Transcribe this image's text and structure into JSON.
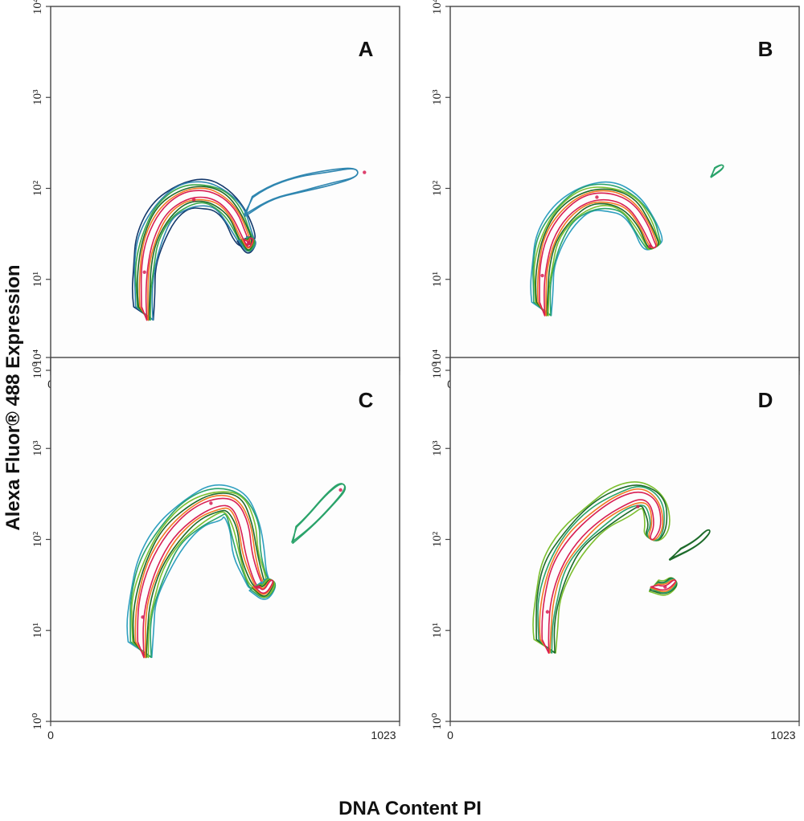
{
  "figure": {
    "ylabel": "Alexa Fluor® 488 Expression",
    "xlabel": "DNA Content PI"
  },
  "chart_data": [
    {
      "type": "contour",
      "panel": "A",
      "xlim": [
        0,
        1023
      ],
      "ylim": [
        1,
        10000
      ],
      "yscale": "log",
      "x_tick_labels": [
        "0",
        "1023"
      ],
      "y_tick_labels": [
        "10⁰",
        "10¹",
        "10²",
        "10³",
        "10⁴"
      ],
      "level_colors": [
        "#13386b",
        "#2f86b0",
        "#3aa84a",
        "#1d6b2a",
        "#f27a22",
        "#d81f54"
      ],
      "populations": [
        {
          "name": "G1 peak",
          "x": 275,
          "y": 12
        },
        {
          "name": "S phase arc top",
          "x": 420,
          "y": 75
        },
        {
          "name": "G2/M peak",
          "x": 580,
          "y": 25
        },
        {
          "name": "high-DNA tail",
          "x": 920,
          "y": 150
        }
      ]
    },
    {
      "type": "contour",
      "panel": "B",
      "xlim": [
        0,
        1023
      ],
      "ylim": [
        1,
        10000
      ],
      "yscale": "log",
      "x_tick_labels": [
        "0",
        "1023"
      ],
      "y_tick_labels": [
        "10⁰",
        "10¹",
        "10²",
        "10³",
        "10⁴"
      ],
      "level_colors": [
        "#2f9fc0",
        "#2aa36a",
        "#7cbf2e",
        "#1d6b2a",
        "#f27a22",
        "#d81f54"
      ],
      "populations": [
        {
          "name": "G1 peak",
          "x": 270,
          "y": 11
        },
        {
          "name": "S phase arc top",
          "x": 430,
          "y": 80
        },
        {
          "name": "G2/M peak",
          "x": 585,
          "y": 23
        }
      ]
    },
    {
      "type": "contour",
      "panel": "C",
      "xlim": [
        0,
        1023
      ],
      "ylim": [
        1,
        10000
      ],
      "yscale": "log",
      "x_tick_labels": [
        "0",
        "1023"
      ],
      "y_tick_labels": [
        "10⁰",
        "10¹",
        "10²",
        "10³",
        "10⁴"
      ],
      "level_colors": [
        "#2f9fc0",
        "#2aa36a",
        "#7cbf2e",
        "#1d6b2a",
        "#f27a22",
        "#d81f54"
      ],
      "populations": [
        {
          "name": "G1 peak",
          "x": 270,
          "y": 14
        },
        {
          "name": "S phase arc top",
          "x": 470,
          "y": 250
        },
        {
          "name": "G2/M peak",
          "x": 610,
          "y": 30
        },
        {
          "name": "high-DNA tail",
          "x": 850,
          "y": 350
        }
      ]
    },
    {
      "type": "contour",
      "panel": "D",
      "xlim": [
        0,
        1023
      ],
      "ylim": [
        1,
        10000
      ],
      "yscale": "log",
      "x_tick_labels": [
        "0",
        "1023"
      ],
      "y_tick_labels": [
        "10⁰",
        "10¹",
        "10²",
        "10³",
        "10⁴"
      ],
      "level_colors": [
        "#7cbf2e",
        "#1d6b2a",
        "#2aa36a",
        "#f27a22",
        "#d81f54"
      ],
      "populations": [
        {
          "name": "G1 peak",
          "x": 285,
          "y": 16
        },
        {
          "name": "S phase arc top",
          "x": 550,
          "y": 230
        },
        {
          "name": "G2/M peak",
          "x": 630,
          "y": 30
        }
      ]
    }
  ]
}
